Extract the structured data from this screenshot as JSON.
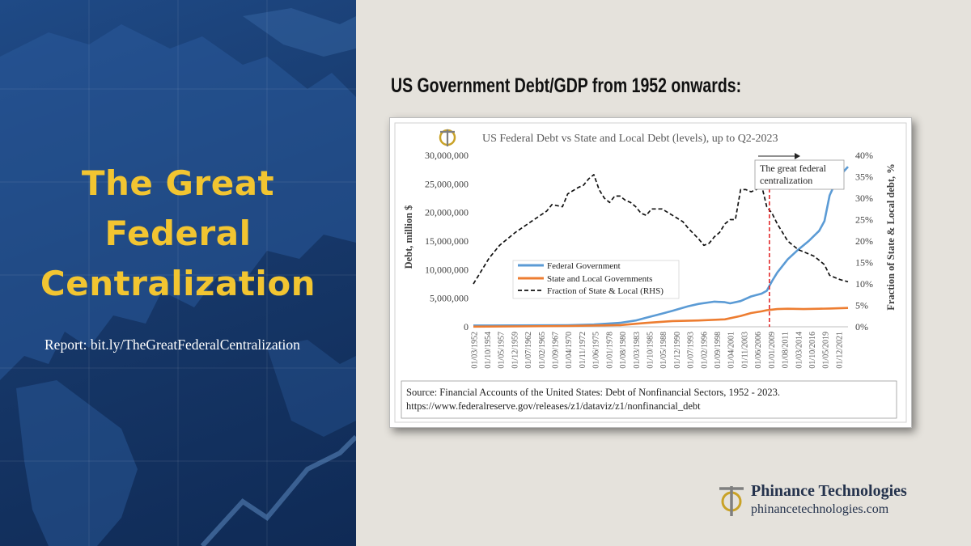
{
  "left_panel": {
    "title_lines": [
      "The Great",
      "Federal",
      "Centralization"
    ],
    "report_text": "Report: bit.ly/TheGreatFederalCentralization"
  },
  "header": {
    "subtitle": "US Government Debt/GDP from 1952 onwards:"
  },
  "chart_data": {
    "type": "line",
    "title": "US Federal Debt vs State and Local Debt (levels), up to Q2-2023",
    "ylabel": "Debt, million $",
    "y2label": "Fraction of State & Local debt, %",
    "ylim": [
      0,
      30000000
    ],
    "y2lim": [
      0,
      40
    ],
    "yticks": [
      "30,000,000",
      "25,000,000",
      "20,000,000",
      "15,000,000",
      "10,000,000",
      "5,000,000",
      "0"
    ],
    "y2ticks": [
      "40%",
      "35%",
      "30%",
      "25%",
      "20%",
      "15%",
      "10%",
      "5%",
      "0%"
    ],
    "xlim": [
      1952.0,
      2023.5
    ],
    "xtick_labels": [
      "01/03/1952",
      "01/10/1954",
      "01/05/1957",
      "01/12/1959",
      "01/07/1962",
      "01/02/1965",
      "01/09/1967",
      "01/04/1970",
      "01/11/1972",
      "01/06/1975",
      "01/01/1978",
      "01/08/1980",
      "01/03/1983",
      "01/10/1985",
      "01/05/1988",
      "01/12/1990",
      "01/07/1993",
      "01/02/1996",
      "01/09/1998",
      "01/04/2001",
      "01/11/2003",
      "01/06/2006",
      "01/01/2009",
      "01/08/2011",
      "01/03/2014",
      "01/10/2016",
      "01/05/2019",
      "01/12/2021"
    ],
    "legend": [
      "Federal Government",
      "State and Local Governments",
      "Fraction of State & Local (RHS)"
    ],
    "legend_position": "center-left",
    "annotation": "The great federal centralization",
    "annotation_x": 2008.5,
    "series": [
      {
        "name": "Federal Government",
        "color": "#5b9bd5",
        "axis": "left",
        "x": [
          1952,
          1955,
          1960,
          1965,
          1970,
          1975,
          1980,
          1983,
          1985,
          1988,
          1990,
          1993,
          1995,
          1998,
          2000,
          2001,
          2003,
          2005,
          2007,
          2008,
          2009,
          2010,
          2012,
          2014,
          2016,
          2018,
          2019,
          2020,
          2021,
          2022,
          2023.5
        ],
        "values": [
          220000,
          230000,
          240000,
          260000,
          290000,
          400000,
          700000,
          1100000,
          1600000,
          2300000,
          2800000,
          3600000,
          4000000,
          4400000,
          4300000,
          4100000,
          4500000,
          5300000,
          5800000,
          6300000,
          8000000,
          9500000,
          11800000,
          13500000,
          15000000,
          16800000,
          18500000,
          23000000,
          25000000,
          26500000,
          28000000
        ]
      },
      {
        "name": "State and Local Governments",
        "color": "#ed7d31",
        "axis": "left",
        "x": [
          1952,
          1960,
          1970,
          1980,
          1985,
          1990,
          1995,
          2000,
          2003,
          2005,
          2007,
          2008,
          2009,
          2010,
          2012,
          2015,
          2018,
          2020,
          2023.5
        ],
        "values": [
          30000,
          70000,
          140000,
          300000,
          680000,
          1000000,
          1100000,
          1300000,
          1900000,
          2400000,
          2700000,
          2900000,
          3000000,
          3100000,
          3150000,
          3100000,
          3150000,
          3200000,
          3300000
        ]
      },
      {
        "name": "Fraction of State & Local (RHS)",
        "color": "#111111",
        "axis": "right",
        "x": [
          1952,
          1953,
          1955,
          1957,
          1960,
          1963,
          1966,
          1967,
          1969,
          1970,
          1972,
          1973,
          1974,
          1975,
          1976,
          1977,
          1978,
          1979,
          1980,
          1981,
          1982,
          1983,
          1984,
          1985,
          1986,
          1988,
          1990,
          1992,
          1993,
          1995,
          1996,
          1997,
          1998,
          1999,
          2000,
          2001,
          2002,
          2003,
          2004,
          2005,
          2006,
          2007,
          2008,
          2009,
          2010,
          2011,
          2012,
          2014,
          2016,
          2017,
          2018,
          2019,
          2020,
          2021,
          2022,
          2023.5
        ],
        "values": [
          10,
          12,
          16,
          19,
          22,
          24.5,
          27,
          28.5,
          28,
          31,
          32.5,
          33,
          34.5,
          35.5,
          32,
          30,
          29,
          30.5,
          30.5,
          29.5,
          29,
          28,
          26.5,
          26,
          27.5,
          27.5,
          26,
          24.5,
          23,
          20.5,
          19,
          19.5,
          21,
          22,
          24,
          25,
          25,
          32,
          32,
          31.5,
          32,
          33,
          28,
          26.5,
          24,
          22,
          20,
          18,
          17,
          16.5,
          15.5,
          14.5,
          12,
          11.5,
          11,
          10.5
        ]
      }
    ]
  },
  "source_box": {
    "line1": "Source: Financial Accounts of the United States: Debt of Nonfinancial Sectors, 1952 - 2023.",
    "line2": "https://www.federalreserve.gov/releases/z1/dataviz/z1/nonfinancial_debt"
  },
  "brand": {
    "name": "Phinance Technologies",
    "url": "phinancetechnologies.com"
  },
  "colors": {
    "title_yellow": "#f2c531",
    "logo_gold": "#c9a227",
    "logo_grey": "#7f7f7f",
    "red_line": "#e0191b"
  }
}
